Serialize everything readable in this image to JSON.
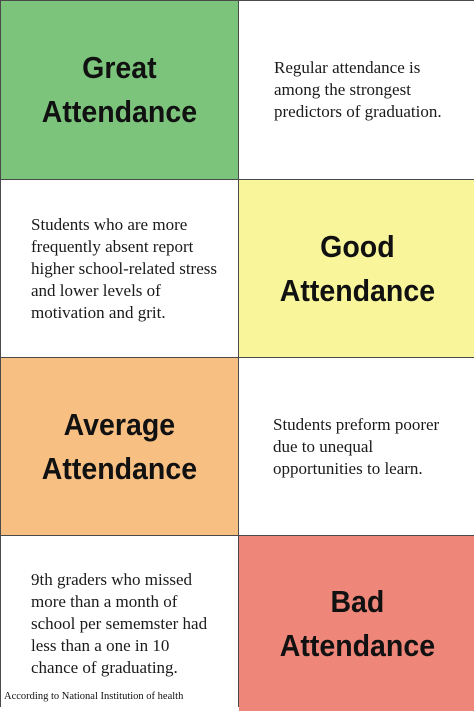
{
  "colors": {
    "great": "#7cc47c",
    "good": "#f9f59a",
    "average": "#f8bf82",
    "bad": "#ee867a",
    "border": "#4a4a4a"
  },
  "rows": [
    {
      "heading_line1": "Great",
      "heading_line2": "Attendance",
      "text": "Regular attendance is among the strongest predictors of graduation."
    },
    {
      "heading_line1": "Good",
      "heading_line2": "Attendance",
      "text": "Students who are more frequently absent report higher school-related stress and lower levels of motivation and grit."
    },
    {
      "heading_line1": "Average",
      "heading_line2": "Attendance",
      "text": "Students preform poorer due to unequal opportunities to learn."
    },
    {
      "heading_line1": "Bad",
      "heading_line2": "Attendance",
      "text": "9th graders who missed more than a month of school per sememster had less than a one in 10 chance of graduating."
    }
  ],
  "footer": "According to National Institution of health"
}
